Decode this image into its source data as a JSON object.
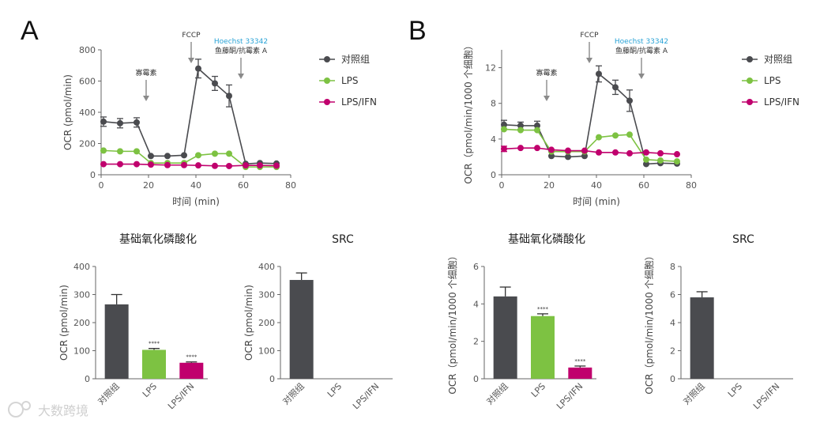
{
  "panels": {
    "a": "A",
    "b": "B"
  },
  "colors": {
    "control": "#4a4b4f",
    "lps": "#7dc242",
    "lps_ifn": "#c0006d",
    "arrow": "#8a8a8a",
    "hoechst": "#29a3d6"
  },
  "legend": {
    "control": "对照组",
    "lps": "LPS",
    "lps_ifn": "LPS/IFN"
  },
  "annotations": {
    "oligomycin": "寡霉素",
    "fccp": "FCCP",
    "hoechst": "Hoechst 33342",
    "rotenone": "鱼藤酮/抗霉素 A"
  },
  "bar_categories_rotated": [
    "对照组",
    "LPS",
    "LPS/IFN"
  ],
  "watermark": "大数跨境",
  "chart_data": [
    {
      "id": "A-time",
      "type": "line",
      "xlabel": "时间 (min)",
      "ylabel": "OCR (pmol/min)",
      "xlim": [
        0,
        80
      ],
      "ylim": [
        0,
        800
      ],
      "xticks": [
        0,
        20,
        40,
        60,
        80
      ],
      "yticks": [
        0,
        200,
        400,
        600,
        800
      ],
      "x": [
        1,
        8,
        15,
        21,
        28,
        35,
        41,
        48,
        54,
        61,
        67,
        74
      ],
      "series": [
        {
          "name": "对照组",
          "values": [
            340,
            330,
            335,
            120,
            120,
            125,
            680,
            585,
            505,
            70,
            75,
            72
          ],
          "errors": [
            30,
            30,
            30,
            0,
            0,
            0,
            60,
            45,
            70,
            0,
            0,
            0
          ]
        },
        {
          "name": "LPS",
          "values": [
            155,
            150,
            150,
            75,
            75,
            75,
            125,
            135,
            135,
            50,
            50,
            50
          ],
          "errors": [
            0,
            0,
            0,
            0,
            0,
            0,
            0,
            0,
            0,
            0,
            0,
            0
          ]
        },
        {
          "name": "LPS/IFN",
          "values": [
            68,
            68,
            68,
            65,
            62,
            62,
            60,
            57,
            56,
            60,
            60,
            58
          ],
          "errors": [
            0,
            0,
            0,
            0,
            0,
            0,
            0,
            0,
            0,
            0,
            0,
            0
          ]
        }
      ],
      "arrows": {
        "oligomycin": 19,
        "fccp": 38,
        "rotenone": 59
      }
    },
    {
      "id": "B-time",
      "type": "line",
      "xlabel": "时间 (min)",
      "ylabel": "OCR（pmol/min/1000 个细胞）",
      "xlim": [
        0,
        80
      ],
      "ylim": [
        0,
        14
      ],
      "xticks": [
        0,
        20,
        40,
        60,
        80
      ],
      "yticks": [
        0,
        4,
        8,
        12
      ],
      "x": [
        1,
        8,
        15,
        21,
        28,
        35,
        41,
        48,
        54,
        61,
        67,
        74
      ],
      "series": [
        {
          "name": "对照组",
          "values": [
            5.6,
            5.5,
            5.5,
            2.1,
            2.0,
            2.1,
            11.3,
            9.8,
            8.3,
            1.2,
            1.3,
            1.25
          ],
          "errors": [
            0.5,
            0.4,
            0.5,
            0,
            0,
            0,
            0.9,
            0.8,
            1.2,
            0,
            0,
            0
          ]
        },
        {
          "name": "LPS",
          "values": [
            5.1,
            5.0,
            5.0,
            2.6,
            2.6,
            2.6,
            4.2,
            4.4,
            4.5,
            1.7,
            1.6,
            1.5
          ],
          "errors": [
            0,
            0,
            0,
            0,
            0,
            0,
            0,
            0,
            0,
            0,
            0,
            0
          ]
        },
        {
          "name": "LPS/IFN",
          "values": [
            2.9,
            3.0,
            3.0,
            2.8,
            2.7,
            2.7,
            2.5,
            2.5,
            2.4,
            2.5,
            2.4,
            2.3
          ],
          "errors": [
            0.3,
            0,
            0,
            0,
            0,
            0,
            0,
            0,
            0,
            0,
            0,
            0
          ]
        }
      ],
      "arrows": {
        "oligomycin": 19,
        "fccp": 37,
        "rotenone": 59
      }
    },
    {
      "id": "A-basal",
      "type": "bar",
      "title": "基础氧化磷酸化",
      "ylabel": "OCR (pmol/min)",
      "ylim": [
        0,
        400
      ],
      "yticks": [
        0,
        100,
        200,
        300,
        400
      ],
      "categories": [
        "对照组",
        "LPS",
        "LPS/IFN"
      ],
      "values": [
        265,
        103,
        57
      ],
      "errors": [
        35,
        5,
        3
      ],
      "significance": [
        "",
        "****",
        "****"
      ]
    },
    {
      "id": "A-src",
      "type": "bar",
      "title": "SRC",
      "ylabel": "OCR (pmol/min)",
      "ylim": [
        0,
        400
      ],
      "yticks": [
        0,
        100,
        200,
        300,
        400
      ],
      "categories": [
        "对照组",
        "LPS",
        "LPS/IFN"
      ],
      "values": [
        352,
        0,
        0
      ],
      "errors": [
        25,
        0,
        0
      ],
      "significance": [
        "",
        "",
        ""
      ]
    },
    {
      "id": "B-basal",
      "type": "bar",
      "title": "基础氧化磷酸化",
      "ylabel": "OCR（pmol/min/1000 个细胞）",
      "ylim": [
        0,
        6
      ],
      "yticks": [
        0,
        2,
        4,
        6
      ],
      "categories": [
        "对照组",
        "LPS",
        "LPS/IFN"
      ],
      "values": [
        4.4,
        3.35,
        0.6
      ],
      "errors": [
        0.5,
        0.12,
        0.08
      ],
      "significance": [
        "",
        "****",
        "****"
      ]
    },
    {
      "id": "B-src",
      "type": "bar",
      "title": "SRC",
      "ylabel": "OCR（pmol/min/1000 个细胞）",
      "ylim": [
        0,
        8
      ],
      "yticks": [
        0,
        2,
        4,
        6,
        8
      ],
      "categories": [
        "对照组",
        "LPS",
        "LPS/IFN"
      ],
      "values": [
        5.8,
        0,
        0
      ],
      "errors": [
        0.4,
        0,
        0
      ],
      "significance": [
        "",
        "",
        ""
      ]
    }
  ]
}
